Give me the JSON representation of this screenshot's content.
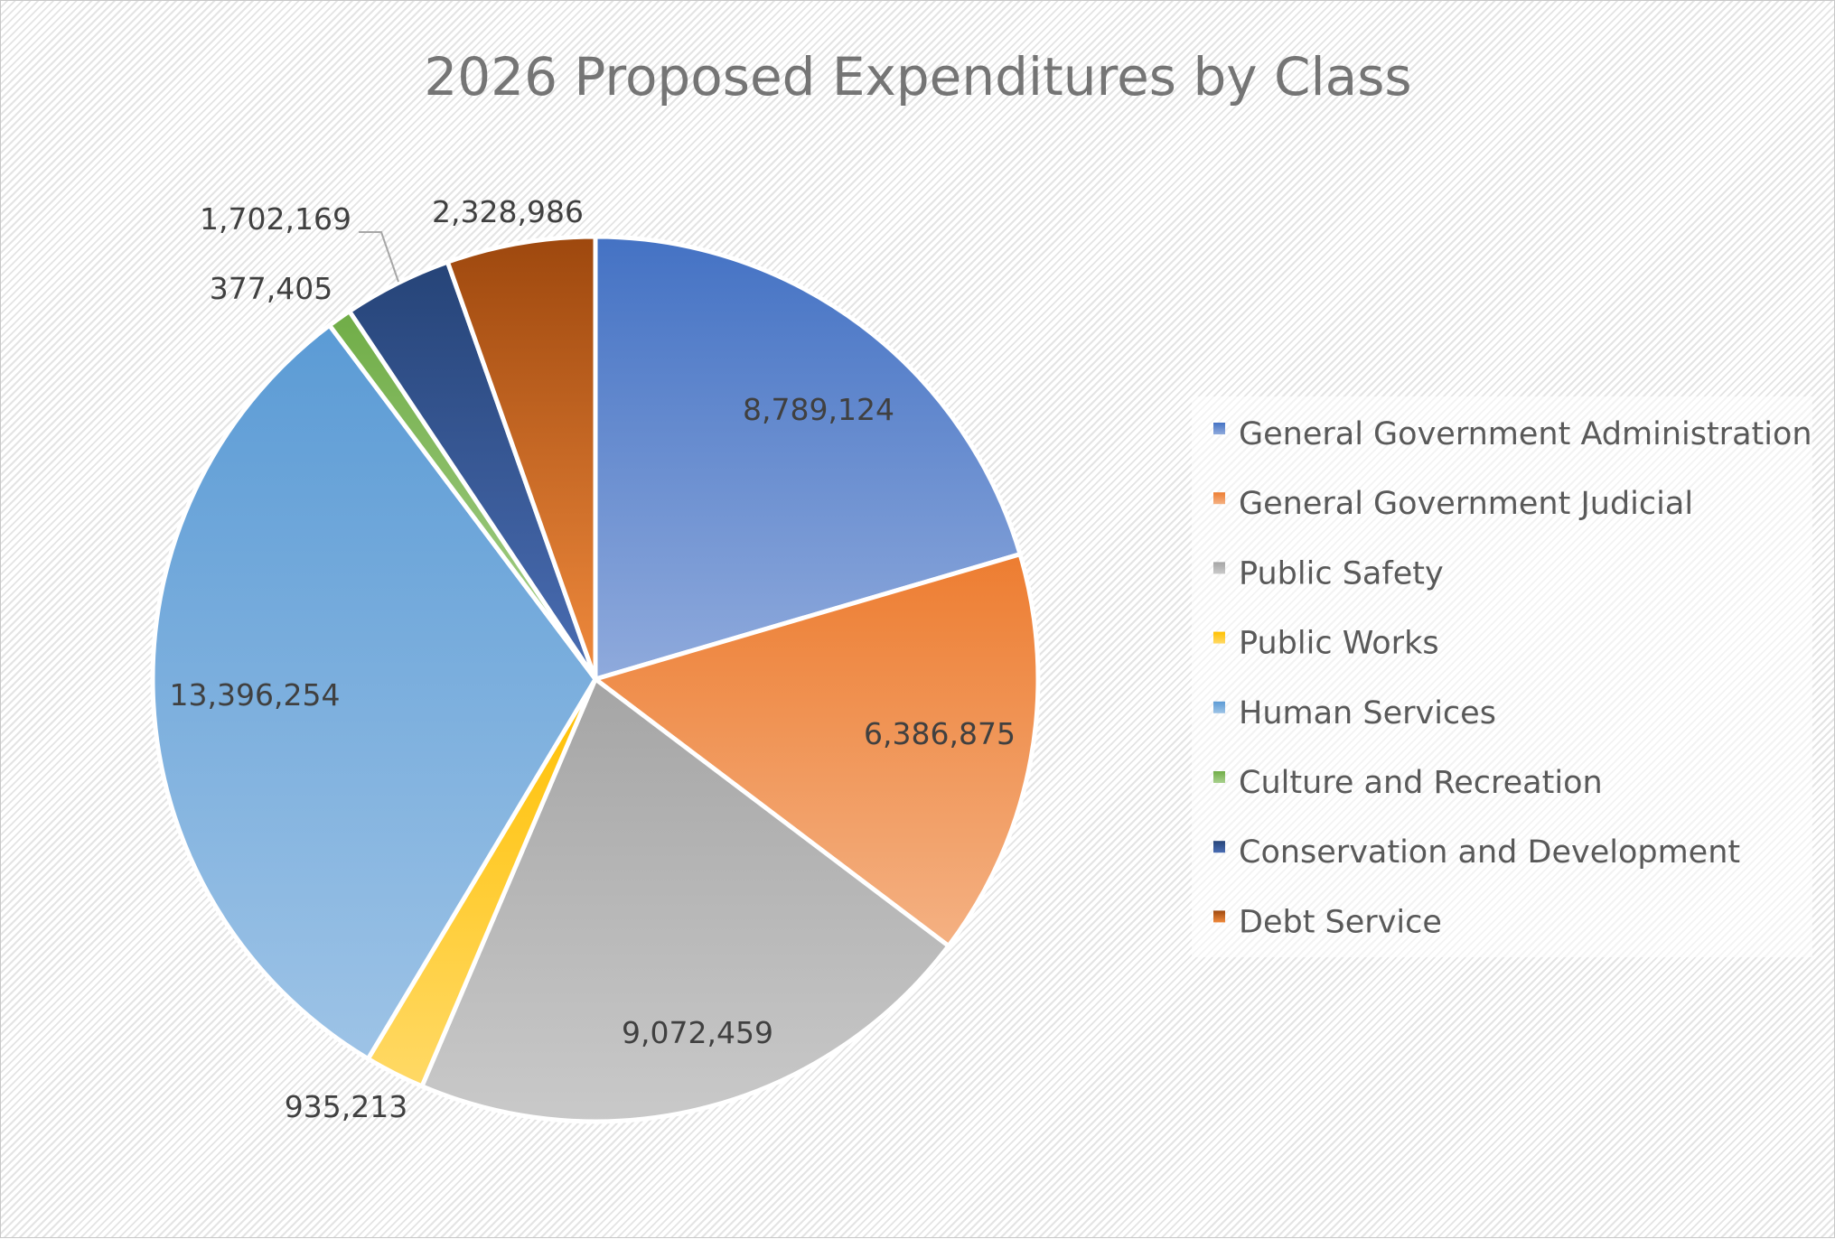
{
  "chart_data": {
    "type": "pie",
    "title": "2026 Proposed Expenditures by Class",
    "legend_position": "right",
    "start_angle": "12 o'clock, clockwise",
    "slices": [
      {
        "label": "General Government Administration",
        "value": 8789124,
        "value_label": "8,789,124",
        "color": "#4472C4",
        "color_light": "#8FAADC"
      },
      {
        "label": "General Government Judicial",
        "value": 6386875,
        "value_label": "6,386,875",
        "color": "#ED7D31",
        "color_light": "#F4B183"
      },
      {
        "label": "Public Safety",
        "value": 9072459,
        "value_label": "9,072,459",
        "color": "#A5A5A5",
        "color_light": "#C9C9C9"
      },
      {
        "label": "Public Works",
        "value": 935213,
        "value_label": "935,213",
        "color": "#FFC000",
        "color_light": "#FFD966"
      },
      {
        "label": "Human Services",
        "value": 13396254,
        "value_label": "13,396,254",
        "color": "#5B9BD5",
        "color_light": "#9DC3E6"
      },
      {
        "label": "Culture and Recreation",
        "value": 377405,
        "value_label": "377,405",
        "color": "#70AD47",
        "color_light": "#A9D18E"
      },
      {
        "label": "Conservation and Development",
        "value": 1702169,
        "value_label": "1,702,169",
        "color": "#264478",
        "color_light": "#4A6DB3"
      },
      {
        "label": "Debt Service",
        "value": 2328986,
        "value_label": "2,328,986",
        "color": "#9E480E",
        "color_light": "#F08A3D"
      }
    ]
  }
}
